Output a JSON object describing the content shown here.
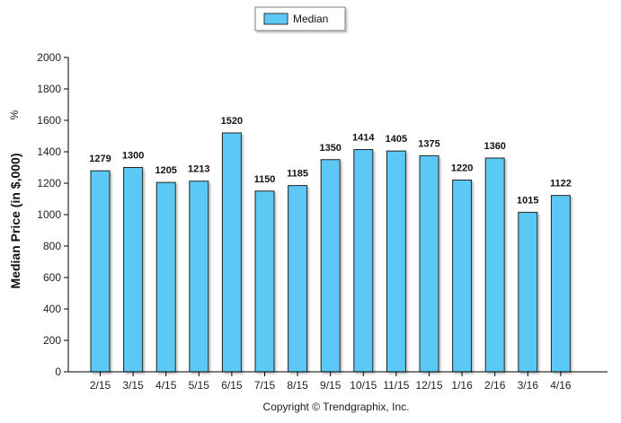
{
  "chart_data": {
    "type": "bar",
    "categories": [
      "2/15",
      "3/15",
      "4/15",
      "5/15",
      "6/15",
      "7/15",
      "8/15",
      "9/15",
      "10/15",
      "11/15",
      "12/15",
      "1/16",
      "2/16",
      "3/16",
      "4/16"
    ],
    "series": [
      {
        "name": "Median",
        "values": [
          1279,
          1300,
          1205,
          1213,
          1520,
          1150,
          1185,
          1350,
          1414,
          1405,
          1375,
          1220,
          1360,
          1015,
          1122
        ],
        "color": "#5bc8f5"
      }
    ],
    "ylabel": "Median Price (in $,000)",
    "ylabel_unit": "%",
    "ylim": [
      0,
      2000
    ],
    "yticks": [
      0,
      200,
      400,
      600,
      800,
      1000,
      1200,
      1400,
      1600,
      1800,
      2000
    ],
    "legend": {
      "position": "top-center"
    },
    "grid": false
  },
  "footer": {
    "copyright": "Copyright © Trendgraphix, Inc."
  }
}
